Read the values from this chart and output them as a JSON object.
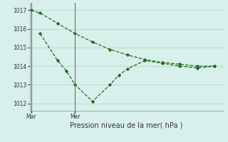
{
  "line1_x": [
    0,
    0.5,
    1.5,
    2.5,
    3.5,
    4.5,
    5.5,
    6.5,
    7.5,
    8.5,
    9.5,
    10.5
  ],
  "line1_y": [
    1017.0,
    1016.85,
    1016.3,
    1015.75,
    1015.3,
    1014.9,
    1014.6,
    1014.35,
    1014.2,
    1014.1,
    1014.0,
    1014.0
  ],
  "line2_x": [
    0.5,
    1.5,
    2.0,
    2.5,
    3.5,
    4.5,
    5.0,
    5.5,
    6.5,
    7.5,
    8.5,
    9.5,
    10.5
  ],
  "line2_y": [
    1015.75,
    1014.3,
    1013.75,
    1013.0,
    1012.1,
    1013.0,
    1013.5,
    1013.85,
    1014.3,
    1014.15,
    1014.0,
    1013.9,
    1014.0
  ],
  "line_color": "#1a6b1a",
  "bg_color": "#d8f0eb",
  "grid_color": "#b8d8d0",
  "xlabel": "Pression niveau de la mer( hPa )",
  "yticks": [
    1012,
    1013,
    1014,
    1015,
    1016,
    1017
  ],
  "ylim": [
    1011.6,
    1017.4
  ],
  "xlim": [
    -0.1,
    11.0
  ],
  "vline_x1": 0.0,
  "vline_x2": 2.5,
  "xtick_mar_x": 0.0,
  "xtick_mer_x": 2.5
}
